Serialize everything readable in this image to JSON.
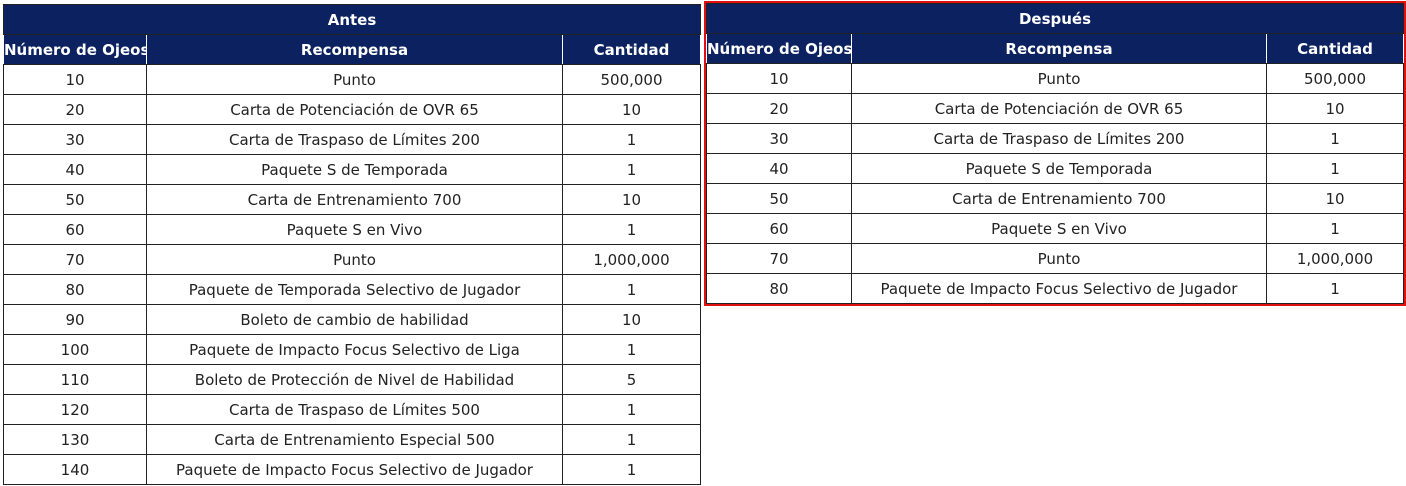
{
  "antes": {
    "title": "Antes",
    "headers": [
      "Número de Ojeos",
      "Recompensa",
      "Cantidad"
    ],
    "rows": [
      [
        "10",
        "Punto",
        "500,000"
      ],
      [
        "20",
        "Carta de Potenciación de OVR 65",
        "10"
      ],
      [
        "30",
        "Carta de Traspaso de Límites 200",
        "1"
      ],
      [
        "40",
        "Paquete S de Temporada",
        "1"
      ],
      [
        "50",
        "Carta de Entrenamiento 700",
        "10"
      ],
      [
        "60",
        "Paquete S en Vivo",
        "1"
      ],
      [
        "70",
        "Punto",
        "1,000,000"
      ],
      [
        "80",
        "Paquete de Temporada Selectivo de Jugador",
        "1"
      ],
      [
        "90",
        "Boleto de cambio de habilidad",
        "10"
      ],
      [
        "100",
        "Paquete de Impacto Focus Selectivo de Liga",
        "1"
      ],
      [
        "110",
        "Boleto de Protección de Nivel de Habilidad",
        "5"
      ],
      [
        "120",
        "Carta de Traspaso de Límites 500",
        "1"
      ],
      [
        "130",
        "Carta de Entrenamiento Especial 500",
        "1"
      ],
      [
        "140",
        "Paquete de Impacto Focus Selectivo de Jugador",
        "1"
      ]
    ]
  },
  "despues": {
    "title": "Después",
    "headers": [
      "Número de Ojeos",
      "Recompensa",
      "Cantidad"
    ],
    "rows": [
      [
        "10",
        "Punto",
        "500,000"
      ],
      [
        "20",
        "Carta de Potenciación de OVR 65",
        "10"
      ],
      [
        "30",
        "Carta de Traspaso de Límites 200",
        "1"
      ],
      [
        "40",
        "Paquete S de Temporada",
        "1"
      ],
      [
        "50",
        "Carta de Entrenamiento 700",
        "10"
      ],
      [
        "60",
        "Paquete S en Vivo",
        "1"
      ],
      [
        "70",
        "Punto",
        "1,000,000"
      ],
      [
        "80",
        "Paquete de Impacto Focus Selectivo de Jugador",
        "1"
      ]
    ]
  },
  "colors": {
    "header_bg": "#0b2160",
    "highlight_border": "#e01010"
  }
}
